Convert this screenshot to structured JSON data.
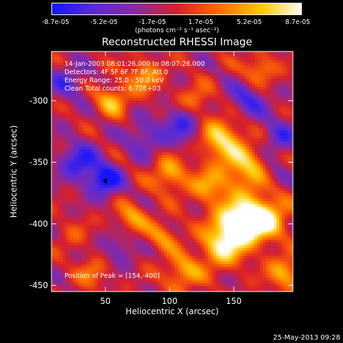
{
  "colorbar": {
    "ticks": [
      "-8.7e-05",
      "-5.2e-05",
      "-1.7e-05",
      "1.7e-05",
      "5.2e-05",
      "8.7e-05"
    ],
    "unit_label": "(photons cm⁻² s⁻¹ asec⁻²)",
    "colors": [
      "#1414ff",
      "#5a2bd6",
      "#8a2aa0",
      "#d8202a",
      "#ff6a00",
      "#ffc800",
      "#ffffff"
    ]
  },
  "chart_data": {
    "type": "heatmap",
    "title": "Reconstructed RHESSI Image",
    "xlabel": "Heliocentric X (arcsec)",
    "ylabel": "Heliocentric Y (arcsec)",
    "xlim": [
      8,
      196
    ],
    "ylim": [
      -455,
      -260
    ],
    "x_ticks": [
      50,
      100,
      150
    ],
    "y_ticks": [
      -300,
      -350,
      -400,
      -450
    ],
    "peak": [
      154,
      -400
    ],
    "annotations": [
      "14-Jan-2003 08:01:26.000 to 08:07:26.000",
      "Detectors: 4F 5F 6F 7F 8F, Att 0",
      "Energy Range: 25.0 - 50.0 keV",
      "Clean     Total counts: 6.72E+03"
    ],
    "peak_label": "Position of Peak = [154,-400]"
  },
  "timestamp": "25-May-2013 09:28"
}
